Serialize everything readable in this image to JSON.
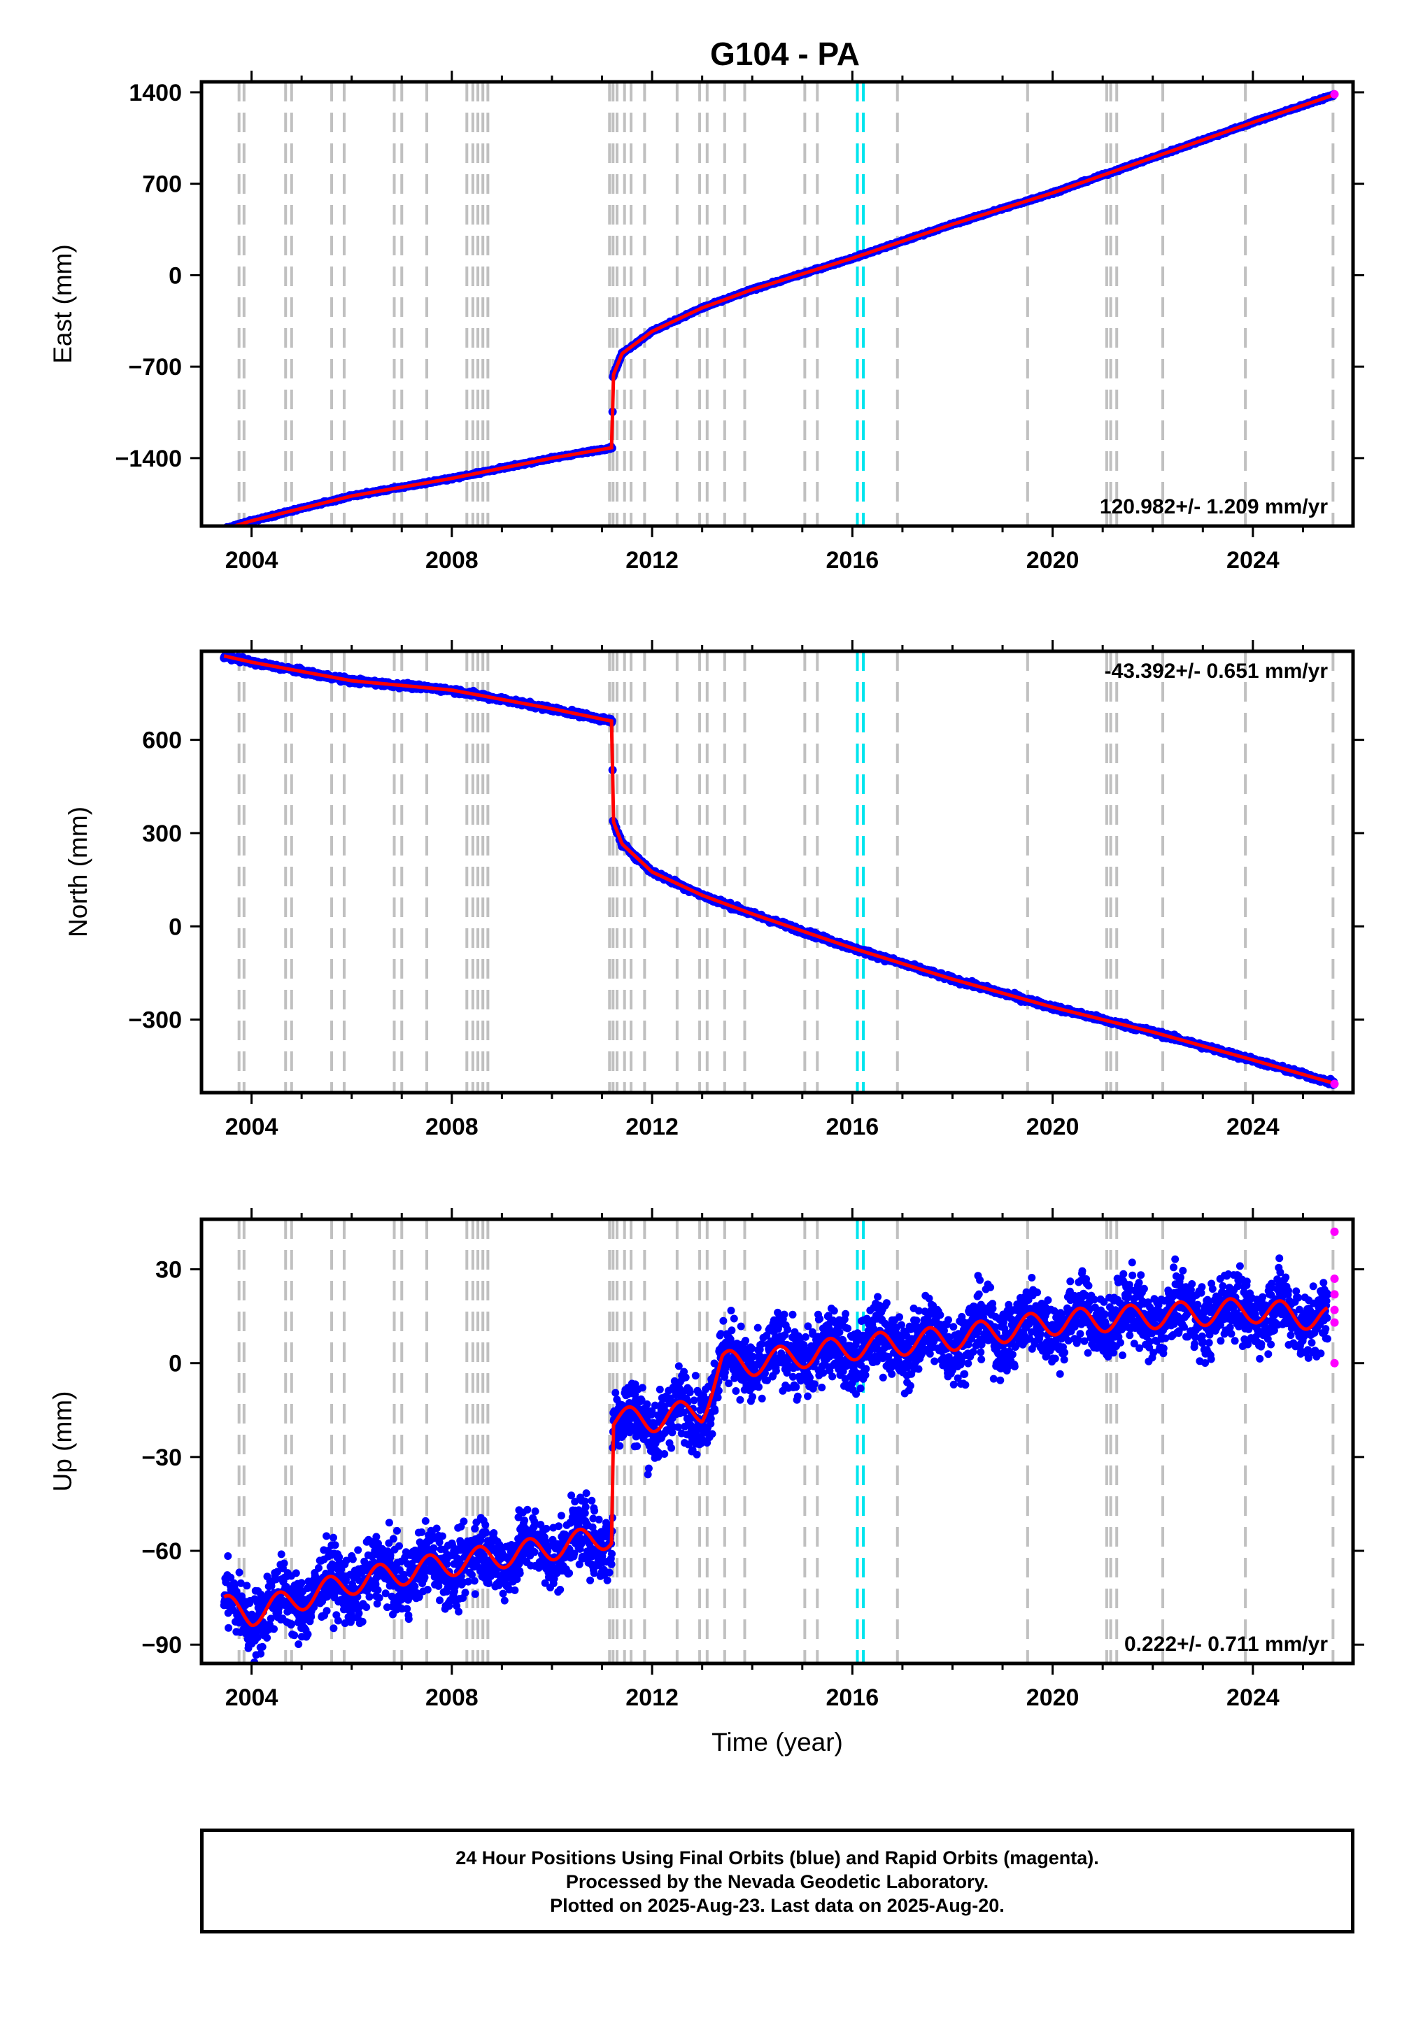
{
  "title": "G104 - PA",
  "colors": {
    "final_orbits": "#0000ff",
    "rapid_orbits": "#ff00ff",
    "model": "#ff0000",
    "event_line": "#c0c0c0",
    "equipment_line": "#00e5ee"
  },
  "chart_data": [
    {
      "type": "scatter",
      "panel": "east",
      "title": "",
      "xlabel": "",
      "ylabel": "East (mm)",
      "xlim": [
        2003.0,
        2026.0
      ],
      "ylim": [
        -1920,
        1480
      ],
      "xticks": [
        2004,
        2008,
        2012,
        2016,
        2020,
        2024
      ],
      "yticks": [
        -1400,
        -700,
        0,
        700,
        1400
      ],
      "grid": false,
      "annotation": "120.982+/- 1.209 mm/yr",
      "annotation_position": "bottom-right",
      "series": [
        {
          "name": "",
          "role": "final-orbits",
          "color": "#0000ff",
          "x": [
            2003.45,
            2004,
            2006,
            2008,
            2010,
            2011.2,
            2011.22,
            2011.4,
            2012,
            2013,
            2014,
            2016,
            2018,
            2020,
            2022,
            2024,
            2025.62
          ],
          "y": [
            -1945,
            -1880,
            -1690,
            -1555,
            -1400,
            -1320,
            -770,
            -600,
            -430,
            -250,
            -110,
            130,
            390,
            630,
            900,
            1170,
            1380
          ]
        },
        {
          "name": "",
          "role": "rapid-orbits",
          "color": "#ff00ff",
          "x": [
            2025.63
          ],
          "y": [
            1385
          ]
        }
      ]
    },
    {
      "type": "scatter",
      "panel": "north",
      "title": "",
      "xlabel": "",
      "ylabel": "North (mm)",
      "xlim": [
        2003.0,
        2026.0
      ],
      "ylim": [
        -535,
        885
      ],
      "xticks": [
        2004,
        2008,
        2012,
        2016,
        2020,
        2024
      ],
      "yticks": [
        -300,
        0,
        300,
        600
      ],
      "grid": false,
      "annotation": "-43.392+/- 0.651 mm/yr",
      "annotation_position": "top-right",
      "series": [
        {
          "name": "",
          "role": "final-orbits",
          "color": "#0000ff",
          "x": [
            2003.45,
            2004,
            2006,
            2008,
            2010,
            2011.2,
            2011.22,
            2011.4,
            2012,
            2013,
            2014,
            2016,
            2018,
            2020,
            2022,
            2024,
            2025.62
          ],
          "y": [
            870,
            850,
            790,
            760,
            700,
            660,
            340,
            265,
            175,
            100,
            40,
            -70,
            -170,
            -260,
            -340,
            -430,
            -505
          ]
        },
        {
          "name": "",
          "role": "rapid-orbits",
          "color": "#ff00ff",
          "x": [
            2025.63
          ],
          "y": [
            -507
          ]
        }
      ]
    },
    {
      "type": "scatter",
      "panel": "up",
      "title": "",
      "xlabel": "Time (year)",
      "ylabel": "Up (mm)",
      "xlim": [
        2003.0,
        2026.0
      ],
      "ylim": [
        -96,
        46
      ],
      "xticks": [
        2004,
        2008,
        2012,
        2016,
        2020,
        2024
      ],
      "yticks": [
        -90,
        -60,
        -30,
        0,
        30
      ],
      "grid": false,
      "annotation": "0.222+/- 0.711 mm/yr",
      "annotation_position": "bottom-right",
      "series": [
        {
          "name": "",
          "role": "final-orbits",
          "color": "#0000ff",
          "x": [
            2003.45,
            2004,
            2006,
            2008,
            2010,
            2011.2,
            2011.22,
            2012,
            2013,
            2013.4,
            2014,
            2016,
            2018,
            2020,
            2022,
            2024,
            2025.5
          ],
          "y": [
            -78,
            -80,
            -70,
            -64,
            -59,
            -55,
            -18,
            -18,
            -15,
            0,
            0,
            5,
            8,
            13,
            15,
            17,
            14
          ]
        },
        {
          "name": "",
          "role": "rapid-orbits",
          "color": "#ff00ff",
          "x": [
            2025.63,
            2025.63,
            2025.63,
            2025.63,
            2025.63,
            2025.63
          ],
          "y": [
            0,
            13,
            17,
            22,
            27,
            42
          ]
        }
      ]
    }
  ],
  "event_lines": {
    "gray": [
      2003.75,
      2003.85,
      2004.68,
      2004.8,
      2005.6,
      2005.85,
      2006.85,
      2007.0,
      2007.5,
      2008.3,
      2008.42,
      2008.52,
      2008.62,
      2008.72,
      2011.15,
      2011.22,
      2011.3,
      2011.45,
      2011.58,
      2011.85,
      2012.5,
      2012.95,
      2013.1,
      2013.45,
      2013.85,
      2015.05,
      2015.3,
      2016.9,
      2019.5,
      2021.08,
      2021.16,
      2021.28,
      2022.2,
      2023.85,
      2025.6
    ],
    "cyan": [
      2016.1,
      2016.22
    ]
  },
  "footer": {
    "line1": "24 Hour Positions Using Final Orbits (blue) and Rapid Orbits (magenta).",
    "line2": "Processed by the Nevada Geodetic Laboratory.",
    "line3": "Plotted on 2025-Aug-23. Last data on 2025-Aug-20."
  }
}
